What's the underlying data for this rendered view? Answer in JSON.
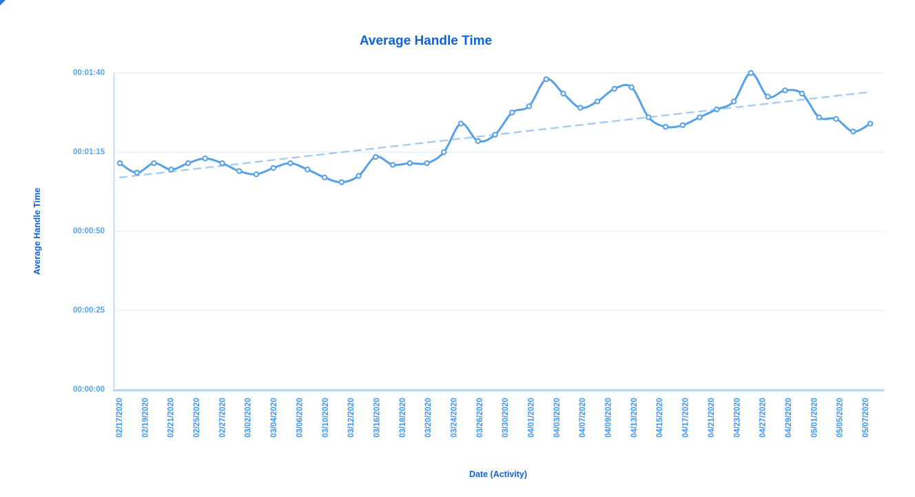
{
  "chart": {
    "title": "Average Handle Time",
    "x_axis_title": "Date (Activity)",
    "y_axis_title": "Average Handle Time"
  },
  "chart_data": {
    "type": "line",
    "title": "Average Handle Time",
    "xlabel": "Date (Activity)",
    "ylabel": "Average Handle Time",
    "grid": "horizontal-only",
    "legend_position": "none",
    "y_tick_labels": [
      "00:00:00",
      "00:00:25",
      "00:00:50",
      "00:01:15",
      "00:01:40"
    ],
    "y_tick_seconds": [
      0,
      25,
      50,
      75,
      100
    ],
    "ylim_seconds": [
      0,
      100
    ],
    "x_tick_labels": [
      "02/17/2020",
      "02/19/2020",
      "02/21/2020",
      "02/25/2020",
      "02/27/2020",
      "03/02/2020",
      "03/04/2020",
      "03/06/2020",
      "03/10/2020",
      "03/12/2020",
      "03/16/2020",
      "03/18/2020",
      "03/20/2020",
      "03/24/2020",
      "03/26/2020",
      "03/30/2020",
      "04/01/2020",
      "04/03/2020",
      "04/07/2020",
      "04/09/2020",
      "04/13/2020",
      "04/15/2020",
      "04/17/2020",
      "04/21/2020",
      "04/23/2020",
      "04/27/2020",
      "04/29/2020",
      "05/01/2020",
      "05/05/2020",
      "05/07/2020"
    ],
    "series": [
      {
        "name": "Average Handle Time",
        "style": "smooth-line-with-circle-markers",
        "values_seconds": [
          71.5,
          68.5,
          71.5,
          69.5,
          71.5,
          73,
          71.5,
          69,
          68,
          70,
          71.5,
          69.5,
          67,
          65.5,
          67.5,
          73.5,
          71,
          71.5,
          71.5,
          75,
          84,
          78.5,
          80.5,
          87.5,
          89.5,
          98,
          93.5,
          89,
          91,
          95,
          95.5,
          86,
          83,
          83.5,
          86,
          88.5,
          91,
          100,
          92.5,
          94.5,
          93.5,
          86,
          85.5,
          81.5,
          84
        ]
      },
      {
        "name": "Trend",
        "style": "dashed-straight-line",
        "endpoints_seconds": [
          67,
          94
        ]
      }
    ],
    "colors": {
      "title_text": "#0b63d9",
      "axis_title_text": "#0b63d9",
      "y_tick_text": "#57a4f1",
      "x_tick_text": "#3d95f0",
      "series_line": "#54a0ea",
      "marker_fill": "#ffffff",
      "marker_stroke": "#54a0ea",
      "trend_line": "#a5cbf1",
      "gridline": "#ddecfc",
      "y_axis_line": "#b7d9f8",
      "x_axis_line": "#aed4f7",
      "background": "#ffffff"
    }
  }
}
